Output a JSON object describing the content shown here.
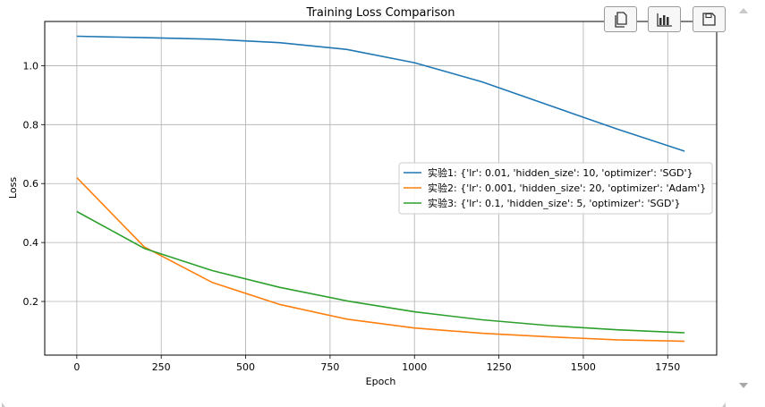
{
  "chart_data": {
    "type": "line",
    "title": "Training Loss Comparison",
    "xlabel": "Epoch",
    "ylabel": "Loss",
    "xlim": [
      -95,
      1895
    ],
    "ylim": [
      0.018,
      1.15
    ],
    "xticks": [
      0,
      250,
      500,
      750,
      1000,
      1250,
      1500,
      1750
    ],
    "yticks": [
      0.2,
      0.4,
      0.6,
      0.8,
      1.0
    ],
    "ytick_labels": [
      "0.2",
      "0.4",
      "0.6",
      "0.8",
      "1.0"
    ],
    "grid": true,
    "legend_position": "center-right",
    "x": [
      0,
      200,
      400,
      600,
      800,
      1000,
      1200,
      1400,
      1600,
      1800
    ],
    "series": [
      {
        "name": "实验1: {'lr': 0.01, 'hidden_size': 10, 'optimizer': 'SGD'}",
        "color": "#1f77b4",
        "values": [
          1.1,
          1.095,
          1.09,
          1.078,
          1.055,
          1.01,
          0.945,
          0.865,
          0.785,
          0.71
        ]
      },
      {
        "name": "实验2: {'lr': 0.001, 'hidden_size': 20, 'optimizer': 'Adam'}",
        "color": "#ff7f0e",
        "values": [
          0.62,
          0.385,
          0.265,
          0.19,
          0.14,
          0.11,
          0.092,
          0.08,
          0.07,
          0.065
        ]
      },
      {
        "name": "实验3: {'lr': 0.1, 'hidden_size': 5, 'optimizer': 'SGD'}",
        "color": "#2ca02c",
        "values": [
          0.505,
          0.38,
          0.305,
          0.248,
          0.202,
          0.165,
          0.138,
          0.118,
          0.104,
          0.094
        ]
      }
    ]
  },
  "toolbar": {
    "copy_icon": "copy-icon",
    "chart_icon": "bar-chart-icon",
    "save_icon": "save-icon"
  }
}
